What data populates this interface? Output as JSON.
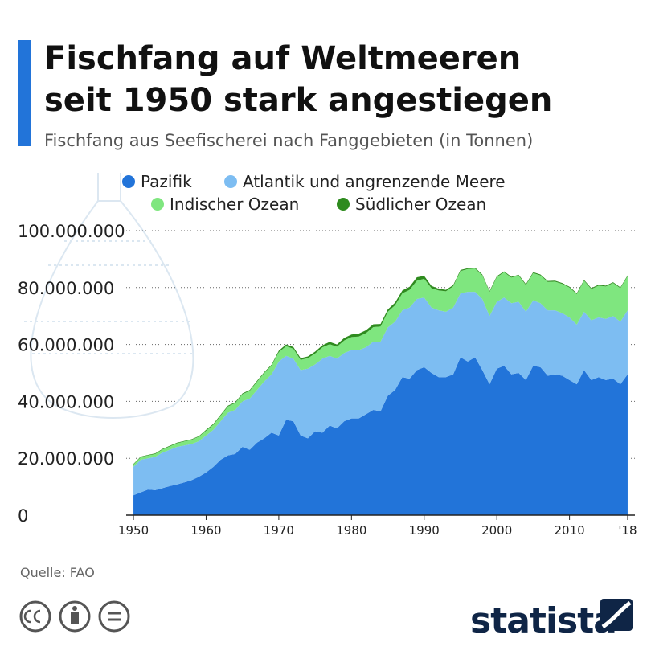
{
  "chart_data": {
    "type": "stacked_area",
    "title": [
      "Fischfang auf Weltmeeren",
      "seit 1950 stark angestiegen"
    ],
    "subtitle": "Fischfang aus Seefischerei nach Fanggebieten (in Tonnen)",
    "source": "Quelle: FAO",
    "logo": "statista",
    "x": [
      1950,
      1951,
      1952,
      1953,
      1954,
      1955,
      1956,
      1957,
      1958,
      1959,
      1960,
      1961,
      1962,
      1963,
      1964,
      1965,
      1966,
      1967,
      1968,
      1969,
      1970,
      1971,
      1972,
      1973,
      1974,
      1975,
      1976,
      1977,
      1978,
      1979,
      1980,
      1981,
      1982,
      1983,
      1984,
      1985,
      1986,
      1987,
      1988,
      1989,
      1990,
      1991,
      1992,
      1993,
      1994,
      1995,
      1996,
      1997,
      1998,
      1999,
      2000,
      2001,
      2002,
      2003,
      2004,
      2005,
      2006,
      2007,
      2008,
      2009,
      2010,
      2011,
      2012,
      2013,
      2014,
      2015,
      2016,
      2017,
      2018
    ],
    "xlim": [
      1949,
      2019
    ],
    "xticks": [
      1950,
      1960,
      1970,
      1980,
      1990,
      2000,
      2010,
      {
        "value": 2018,
        "label": "'18"
      }
    ],
    "ylim": [
      0,
      100000000.0
    ],
    "yticks": [
      0,
      {
        "value": 20000000.0,
        "label": "20.000.000"
      },
      {
        "value": 40000000.0,
        "label": "40.000.000"
      },
      {
        "value": 60000000.0,
        "label": "60.000.000"
      },
      {
        "value": 80000000.0,
        "label": "80.000.000"
      },
      {
        "value": 100000000.0,
        "label": "100.000.000"
      }
    ],
    "grid": true,
    "series": [
      {
        "name": "Pazifik",
        "color": "#2274d9",
        "values": [
          7000000.0,
          8000000.0,
          9000000.0,
          8800000.0,
          9500000.0,
          10200000.0,
          10800000.0,
          11500000.0,
          12300000.0,
          13500000.0,
          15000000.0,
          17000000.0,
          19500000.0,
          21000000.0,
          21500000.0,
          24000000.0,
          23000000.0,
          25500000.0,
          27000000.0,
          29000000.0,
          28000000.0,
          33500000.0,
          33000000.0,
          28000000.0,
          27000000.0,
          29500000.0,
          29000000.0,
          31500000.0,
          30500000.0,
          33000000.0,
          34000000.0,
          34000000.0,
          35500000.0,
          37000000.0,
          36500000.0,
          42000000.0,
          44000000.0,
          48500000.0,
          48000000.0,
          51000000.0,
          52000000.0,
          50000000.0,
          48500000.0,
          48500000.0,
          49500000.0,
          55500000.0,
          54000000.0,
          55500000.0,
          51000000.0,
          46000000.0,
          51500000.0,
          52500000.0,
          49500000.0,
          50000000.0,
          47500000.0,
          52500000.0,
          52000000.0,
          49000000.0,
          49500000.0,
          49000000.0,
          47500000.0,
          46000000.0,
          51000000.0,
          47500000.0,
          48500000.0,
          47500000.0,
          48000000.0,
          46000000.0,
          49500000.0
        ]
      },
      {
        "name": "Atlantik und angrenzende Meere",
        "color": "#7dbdf2",
        "values": [
          10000000.0,
          11500000.0,
          11000000.0,
          11700000.0,
          12500000.0,
          12800000.0,
          13200000.0,
          13000000.0,
          12700000.0,
          12500000.0,
          13000000.0,
          13000000.0,
          13500000.0,
          15000000.0,
          15500000.0,
          16000000.0,
          18000000.0,
          18500000.0,
          20000000.0,
          20500000.0,
          26000000.0,
          22500000.0,
          22000000.0,
          23000000.0,
          24500000.0,
          23500000.0,
          26000000.0,
          24500000.0,
          24500000.0,
          24000000.0,
          24000000.0,
          24000000.0,
          23500000.0,
          24000000.0,
          24500000.0,
          24000000.0,
          24000000.0,
          23500000.0,
          25000000.0,
          25000000.0,
          24500000.0,
          23000000.0,
          23500000.0,
          23000000.0,
          23500000.0,
          22500000.0,
          24500000.0,
          23000000.0,
          25000000.0,
          24000000.0,
          23500000.0,
          24000000.0,
          25000000.0,
          25000000.0,
          24000000.0,
          23000000.0,
          22500000.0,
          23000000.0,
          22500000.0,
          22000000.0,
          22000000.0,
          21000000.0,
          20500000.0,
          21000000.0,
          21000000.0,
          21500000.0,
          22000000.0,
          22000000.0,
          22500000.0
        ]
      },
      {
        "name": "Indischer Ozean",
        "color": "#7fe67f",
        "values": [
          800000.0,
          900000.0,
          1000000.0,
          1000000.0,
          1100000.0,
          1200000.0,
          1300000.0,
          1400000.0,
          1500000.0,
          1600000.0,
          1700000.0,
          1800000.0,
          2000000.0,
          2200000.0,
          2400000.0,
          2500000.0,
          2700000.0,
          2900000.0,
          3000000.0,
          3100000.0,
          3300000.0,
          3400000.0,
          3500000.0,
          3600000.0,
          3700000.0,
          3800000.0,
          4000000.0,
          4100000.0,
          4200000.0,
          4400000.0,
          4600000.0,
          4800000.0,
          5000000.0,
          5100000.0,
          5300000.0,
          5500000.0,
          5800000.0,
          6000000.0,
          6200000.0,
          6400000.0,
          6600000.0,
          6800000.0,
          7000000.0,
          7200000.0,
          7500000.0,
          7800000.0,
          8000000.0,
          8200000.0,
          8300000.0,
          8500000.0,
          8700000.0,
          8900000.0,
          9000000.0,
          9200000.0,
          9400000.0,
          9600000.0,
          9800000.0,
          10000000.0,
          10100000.0,
          10300000.0,
          10500000.0,
          10700000.0,
          10900000.0,
          11000000.0,
          11200000.0,
          11400000.0,
          11600000.0,
          11800000.0,
          12000000.0
        ]
      },
      {
        "name": "Südlicher Ozean",
        "color": "#2e8b1e",
        "values": [
          200000.0,
          200000.0,
          200000.0,
          200000.0,
          200000.0,
          200000.0,
          200000.0,
          200000.0,
          200000.0,
          200000.0,
          300000.0,
          300000.0,
          300000.0,
          300000.0,
          300000.0,
          300000.0,
          300000.0,
          300000.0,
          300000.0,
          300000.0,
          500000.0,
          600000.0,
          600000.0,
          600000.0,
          600000.0,
          700000.0,
          700000.0,
          800000.0,
          800000.0,
          900000.0,
          900000.0,
          1000000.0,
          1000000.0,
          1000000.0,
          900000.0,
          800000.0,
          900000.0,
          1000000.0,
          1100000.0,
          1200000.0,
          1000000.0,
          800000.0,
          600000.0,
          500000.0,
          400000.0,
          400000.0,
          300000.0,
          300000.0,
          300000.0,
          300000.0,
          300000.0,
          300000.0,
          300000.0,
          300000.0,
          300000.0,
          300000.0,
          300000.0,
          300000.0,
          300000.0,
          300000.0,
          300000.0,
          300000.0,
          300000.0,
          300000.0,
          300000.0,
          300000.0,
          300000.0,
          300000.0,
          300000.0
        ]
      }
    ]
  }
}
